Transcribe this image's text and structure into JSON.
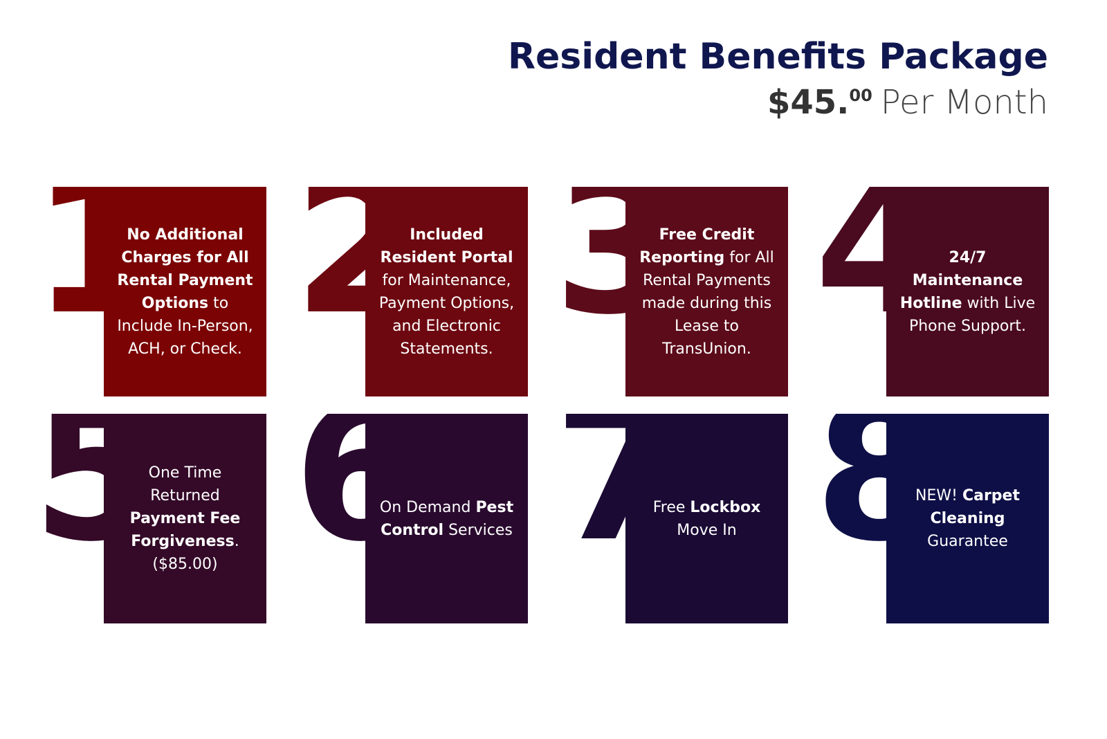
{
  "header": {
    "title": "Resident Benefits Package",
    "price": "$45.",
    "cents": "00",
    "period": "Per Month"
  },
  "cards": [
    {
      "number": "1",
      "color": "#7b0303",
      "runs": [
        {
          "text": "No Additional Charges for All Rental Payment Options",
          "bold": true
        },
        {
          "text": " to Include In-Person, ACH, or Check.",
          "bold": false
        }
      ]
    },
    {
      "number": "2",
      "color": "#6d0710",
      "runs": [
        {
          "text": "Included Resident Portal",
          "bold": true
        },
        {
          "text": " for Maintenance, Payment Options, and Electronic Statements.",
          "bold": false
        }
      ]
    },
    {
      "number": "3",
      "color": "#5c0b1a",
      "runs": [
        {
          "text": "Free Credit Reporting",
          "bold": true
        },
        {
          "text": " for All Rental Payments made during this Lease to TransUnion.",
          "bold": false
        }
      ]
    },
    {
      "number": "4",
      "color": "#4a0a1f",
      "runs": [
        {
          "text": "24/7 Maintenance Hotline",
          "bold": true
        },
        {
          "text": " with Live Phone Support.",
          "bold": false
        }
      ]
    },
    {
      "number": "5",
      "color": "#340a28",
      "runs": [
        {
          "text": "One Time Returned ",
          "bold": false
        },
        {
          "text": "Payment Fee Forgiveness",
          "bold": true
        },
        {
          "text": ". ($85.00)",
          "bold": false
        }
      ]
    },
    {
      "number": "6",
      "color": "#290a2e",
      "runs": [
        {
          "text": "On Demand ",
          "bold": false
        },
        {
          "text": "Pest Control",
          "bold": true
        },
        {
          "text": " Services",
          "bold": false
        }
      ]
    },
    {
      "number": "7",
      "color": "#1a0a34",
      "runs": [
        {
          "text": "Free ",
          "bold": false
        },
        {
          "text": "Lockbox",
          "bold": true
        },
        {
          "text": " Move In",
          "bold": false
        }
      ]
    },
    {
      "number": "8",
      "color": "#0e0f46",
      "runs": [
        {
          "text": "NEW! ",
          "bold": false
        },
        {
          "text": "Carpet Cleaning",
          "bold": true
        },
        {
          "text": " Guarantee",
          "bold": false
        }
      ]
    }
  ]
}
